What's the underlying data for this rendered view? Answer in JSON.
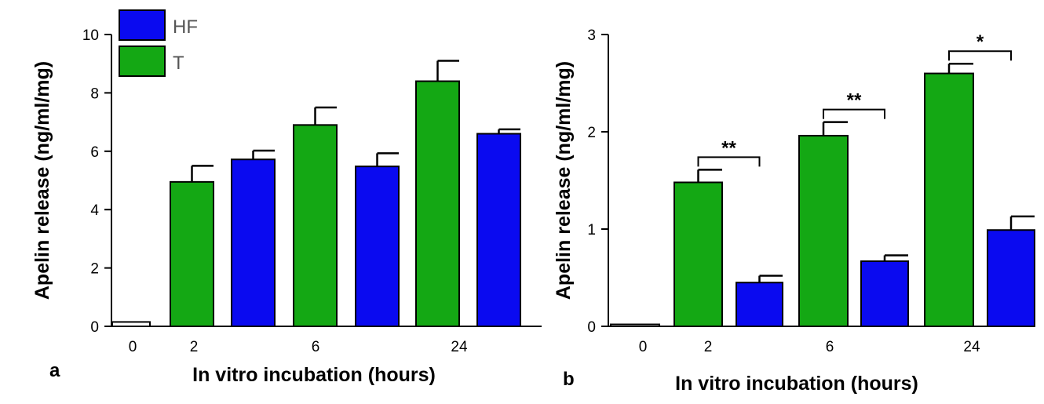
{
  "colors": {
    "T": "#14a814",
    "HF": "#0a0af0",
    "control": "#ffffff",
    "stroke": "#000000"
  },
  "legend": {
    "placement": "top-left",
    "entries": [
      {
        "key": "HF",
        "label": "HF"
      },
      {
        "key": "T",
        "label": "T"
      }
    ]
  },
  "chart_data": [
    {
      "panel": "a",
      "type": "bar",
      "xlabel": "In vitro incubation (hours)",
      "ylabel": "Apelin release (ng/ml/mg)",
      "ylim": [
        0,
        10
      ],
      "yticks": [
        0,
        2,
        4,
        6,
        8,
        10
      ],
      "yticks_labels": [
        "0",
        "2",
        "4",
        "6",
        "8",
        "10"
      ],
      "categories": [
        "0",
        "2",
        "6",
        "24"
      ],
      "bars": [
        {
          "category": "0",
          "group": "control",
          "value": 0.15,
          "error": 0
        },
        {
          "category": "2",
          "group": "T",
          "value": 4.95,
          "error": 0.55
        },
        {
          "category": "2",
          "group": "HF",
          "value": 5.72,
          "error": 0.3
        },
        {
          "category": "6",
          "group": "T",
          "value": 6.9,
          "error": 0.6
        },
        {
          "category": "6",
          "group": "HF",
          "value": 5.48,
          "error": 0.45
        },
        {
          "category": "24",
          "group": "T",
          "value": 8.4,
          "error": 0.7
        },
        {
          "category": "24",
          "group": "HF",
          "value": 6.6,
          "error": 0.15
        }
      ],
      "significance": []
    },
    {
      "panel": "b",
      "type": "bar",
      "xlabel": "In vitro incubation (hours)",
      "ylabel": "Apelin release (ng/ml/mg)",
      "ylim": [
        0,
        3
      ],
      "yticks": [
        0,
        1,
        2,
        3
      ],
      "yticks_labels": [
        "0",
        "1",
        "2",
        "3"
      ],
      "categories": [
        "0",
        "2",
        "6",
        "24"
      ],
      "bars": [
        {
          "category": "0",
          "group": "control",
          "value": 0.02,
          "error": 0
        },
        {
          "category": "2",
          "group": "T",
          "value": 1.48,
          "error": 0.13
        },
        {
          "category": "2",
          "group": "HF",
          "value": 0.45,
          "error": 0.07
        },
        {
          "category": "6",
          "group": "T",
          "value": 1.96,
          "error": 0.14
        },
        {
          "category": "6",
          "group": "HF",
          "value": 0.67,
          "error": 0.06
        },
        {
          "category": "24",
          "group": "T",
          "value": 2.6,
          "error": 0.1
        },
        {
          "category": "24",
          "group": "HF",
          "value": 0.99,
          "error": 0.14
        }
      ],
      "significance": [
        {
          "category": "2",
          "label": "**"
        },
        {
          "category": "6",
          "label": "**"
        },
        {
          "category": "24",
          "label": "*"
        }
      ]
    }
  ]
}
